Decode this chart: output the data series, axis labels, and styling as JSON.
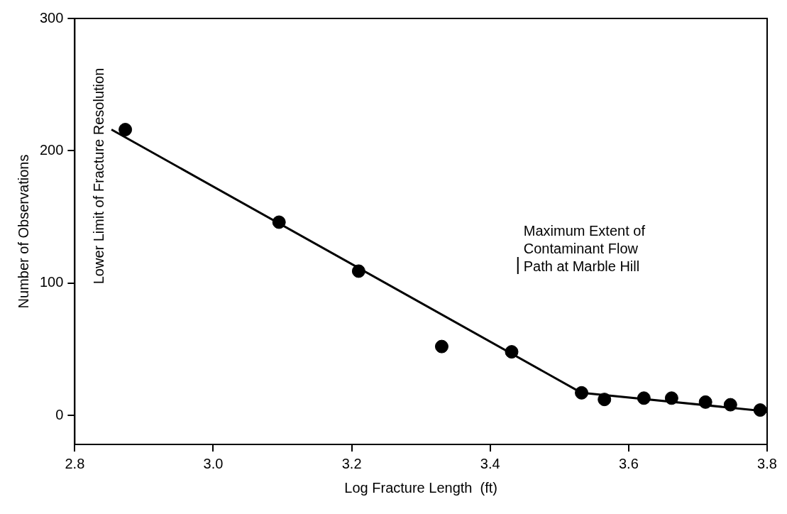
{
  "chart_data": {
    "type": "scatter",
    "xlabel": "Log Fracture Length  (ft)",
    "ylabel": "Number of Observations",
    "xlim": [
      2.8,
      3.8
    ],
    "ylim": [
      -22,
      300
    ],
    "xticks": [
      2.8,
      {
        "value": 3,
        "label": "3.0"
      },
      3.2,
      3.4,
      3.6,
      3.8
    ],
    "yticks": [
      0,
      100,
      200,
      300
    ],
    "grid": false,
    "legend": false,
    "series": [
      {
        "type": "scatter",
        "color": "#000000",
        "marker": "circle",
        "x": [
          2.873,
          3.095,
          3.21,
          3.33,
          3.431,
          3.532,
          3.565,
          3.622,
          3.662,
          3.711,
          3.747,
          3.79
        ],
        "values": [
          216,
          146,
          109,
          52,
          48,
          17,
          12,
          13,
          13,
          10,
          8,
          4
        ]
      },
      {
        "type": "line",
        "color": "#000000",
        "line_style": "solid",
        "marker": "none",
        "x": [
          2.853,
          3.532,
          3.8
        ],
        "values": [
          216,
          17,
          3
        ]
      }
    ],
    "annotations": [
      "Lower Limit of Fracture Resolution",
      "Maximum Extent of Contaminant Flow Path at Marble Hill"
    ]
  }
}
